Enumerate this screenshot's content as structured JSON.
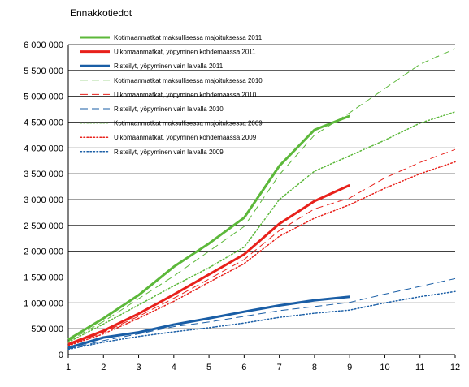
{
  "chart_data": {
    "type": "line",
    "title": "Ennakkotiedot",
    "xlabel": "",
    "ylabel": "",
    "x": [
      1,
      2,
      3,
      4,
      5,
      6,
      7,
      8,
      9,
      10,
      11,
      12
    ],
    "xlim": [
      1,
      12
    ],
    "ylim": [
      0,
      6000000
    ],
    "yticks": [
      0,
      500000,
      1000000,
      1500000,
      2000000,
      2500000,
      3000000,
      3500000,
      4000000,
      4500000,
      5000000,
      5500000,
      6000000
    ],
    "ytick_labels": [
      "0",
      "500 000",
      "1 000 000",
      "1 500 000",
      "2 000 000",
      "2 500 000",
      "3 000 000",
      "3 500 000",
      "4 000 000",
      "4 500 000",
      "5 000 000",
      "5 500 000",
      "6 000 000"
    ],
    "xtick_labels": [
      "1",
      "2",
      "3",
      "4",
      "5",
      "6",
      "7",
      "8",
      "9",
      "10",
      "11",
      "12"
    ],
    "grid": "horizontal",
    "legend_position": "top-left",
    "series": [
      {
        "name": "Kotimaanmatkat maksullisessa majoituksessa 2011",
        "color": "#5cb83a",
        "style": "solid",
        "width": 3,
        "values": [
          290000,
          700000,
          1150000,
          1700000,
          2150000,
          2650000,
          3650000,
          4350000,
          4620000,
          null,
          null,
          null
        ]
      },
      {
        "name": "Ulkomaanmatkat, yöpyminen kohdemaassa 2011",
        "color": "#e8211b",
        "style": "solid",
        "width": 3,
        "values": [
          200000,
          460000,
          790000,
          1160000,
          1550000,
          1940000,
          2530000,
          2970000,
          3280000,
          null,
          null,
          null
        ]
      },
      {
        "name": "Risteilyt, yöpyminen vain laivalla 2011",
        "color": "#1a5ea6",
        "style": "solid",
        "width": 3,
        "values": [
          130000,
          330000,
          430000,
          580000,
          700000,
          830000,
          950000,
          1050000,
          1120000,
          null,
          null,
          null
        ]
      },
      {
        "name": "Kotimaanmatkat maksullisessa majoituksessa 2010",
        "color": "#5cb83a",
        "style": "dashed",
        "width": 1,
        "values": [
          260000,
          640000,
          1080000,
          1520000,
          2000000,
          2480000,
          3480000,
          4250000,
          4680000,
          5150000,
          5620000,
          5920000
        ]
      },
      {
        "name": "Ulkomaanmatkat, yöpyminen kohdemaassa 2010",
        "color": "#e8211b",
        "style": "dashed",
        "width": 1,
        "values": [
          180000,
          430000,
          740000,
          1090000,
          1460000,
          1840000,
          2400000,
          2820000,
          3030000,
          3420000,
          3720000,
          3970000
        ]
      },
      {
        "name": "Risteilyt, yöpyminen vain laivalla 2010",
        "color": "#1a5ea6",
        "style": "dashed",
        "width": 1,
        "values": [
          110000,
          270000,
          400000,
          540000,
          630000,
          740000,
          850000,
          930000,
          1010000,
          1170000,
          1320000,
          1470000
        ]
      },
      {
        "name": "Kotimaanmatkat maksullisessa majoituksessa 2009",
        "color": "#5cb83a",
        "style": "dotted",
        "width": 1.5,
        "values": [
          240000,
          590000,
          960000,
          1330000,
          1680000,
          2080000,
          3000000,
          3550000,
          3850000,
          4150000,
          4480000,
          4700000
        ]
      },
      {
        "name": "Ulkomaanmatkat, yöpyminen kohdemaassa 2009",
        "color": "#e8211b",
        "style": "dotted",
        "width": 1.5,
        "values": [
          170000,
          400000,
          700000,
          1030000,
          1400000,
          1760000,
          2290000,
          2640000,
          2900000,
          3220000,
          3500000,
          3730000
        ]
      },
      {
        "name": "Risteilyt, yöpyminen vain laivalla 2009",
        "color": "#1a5ea6",
        "style": "dotted",
        "width": 1.5,
        "values": [
          100000,
          240000,
          350000,
          440000,
          520000,
          610000,
          720000,
          800000,
          860000,
          1000000,
          1120000,
          1220000
        ]
      }
    ]
  }
}
